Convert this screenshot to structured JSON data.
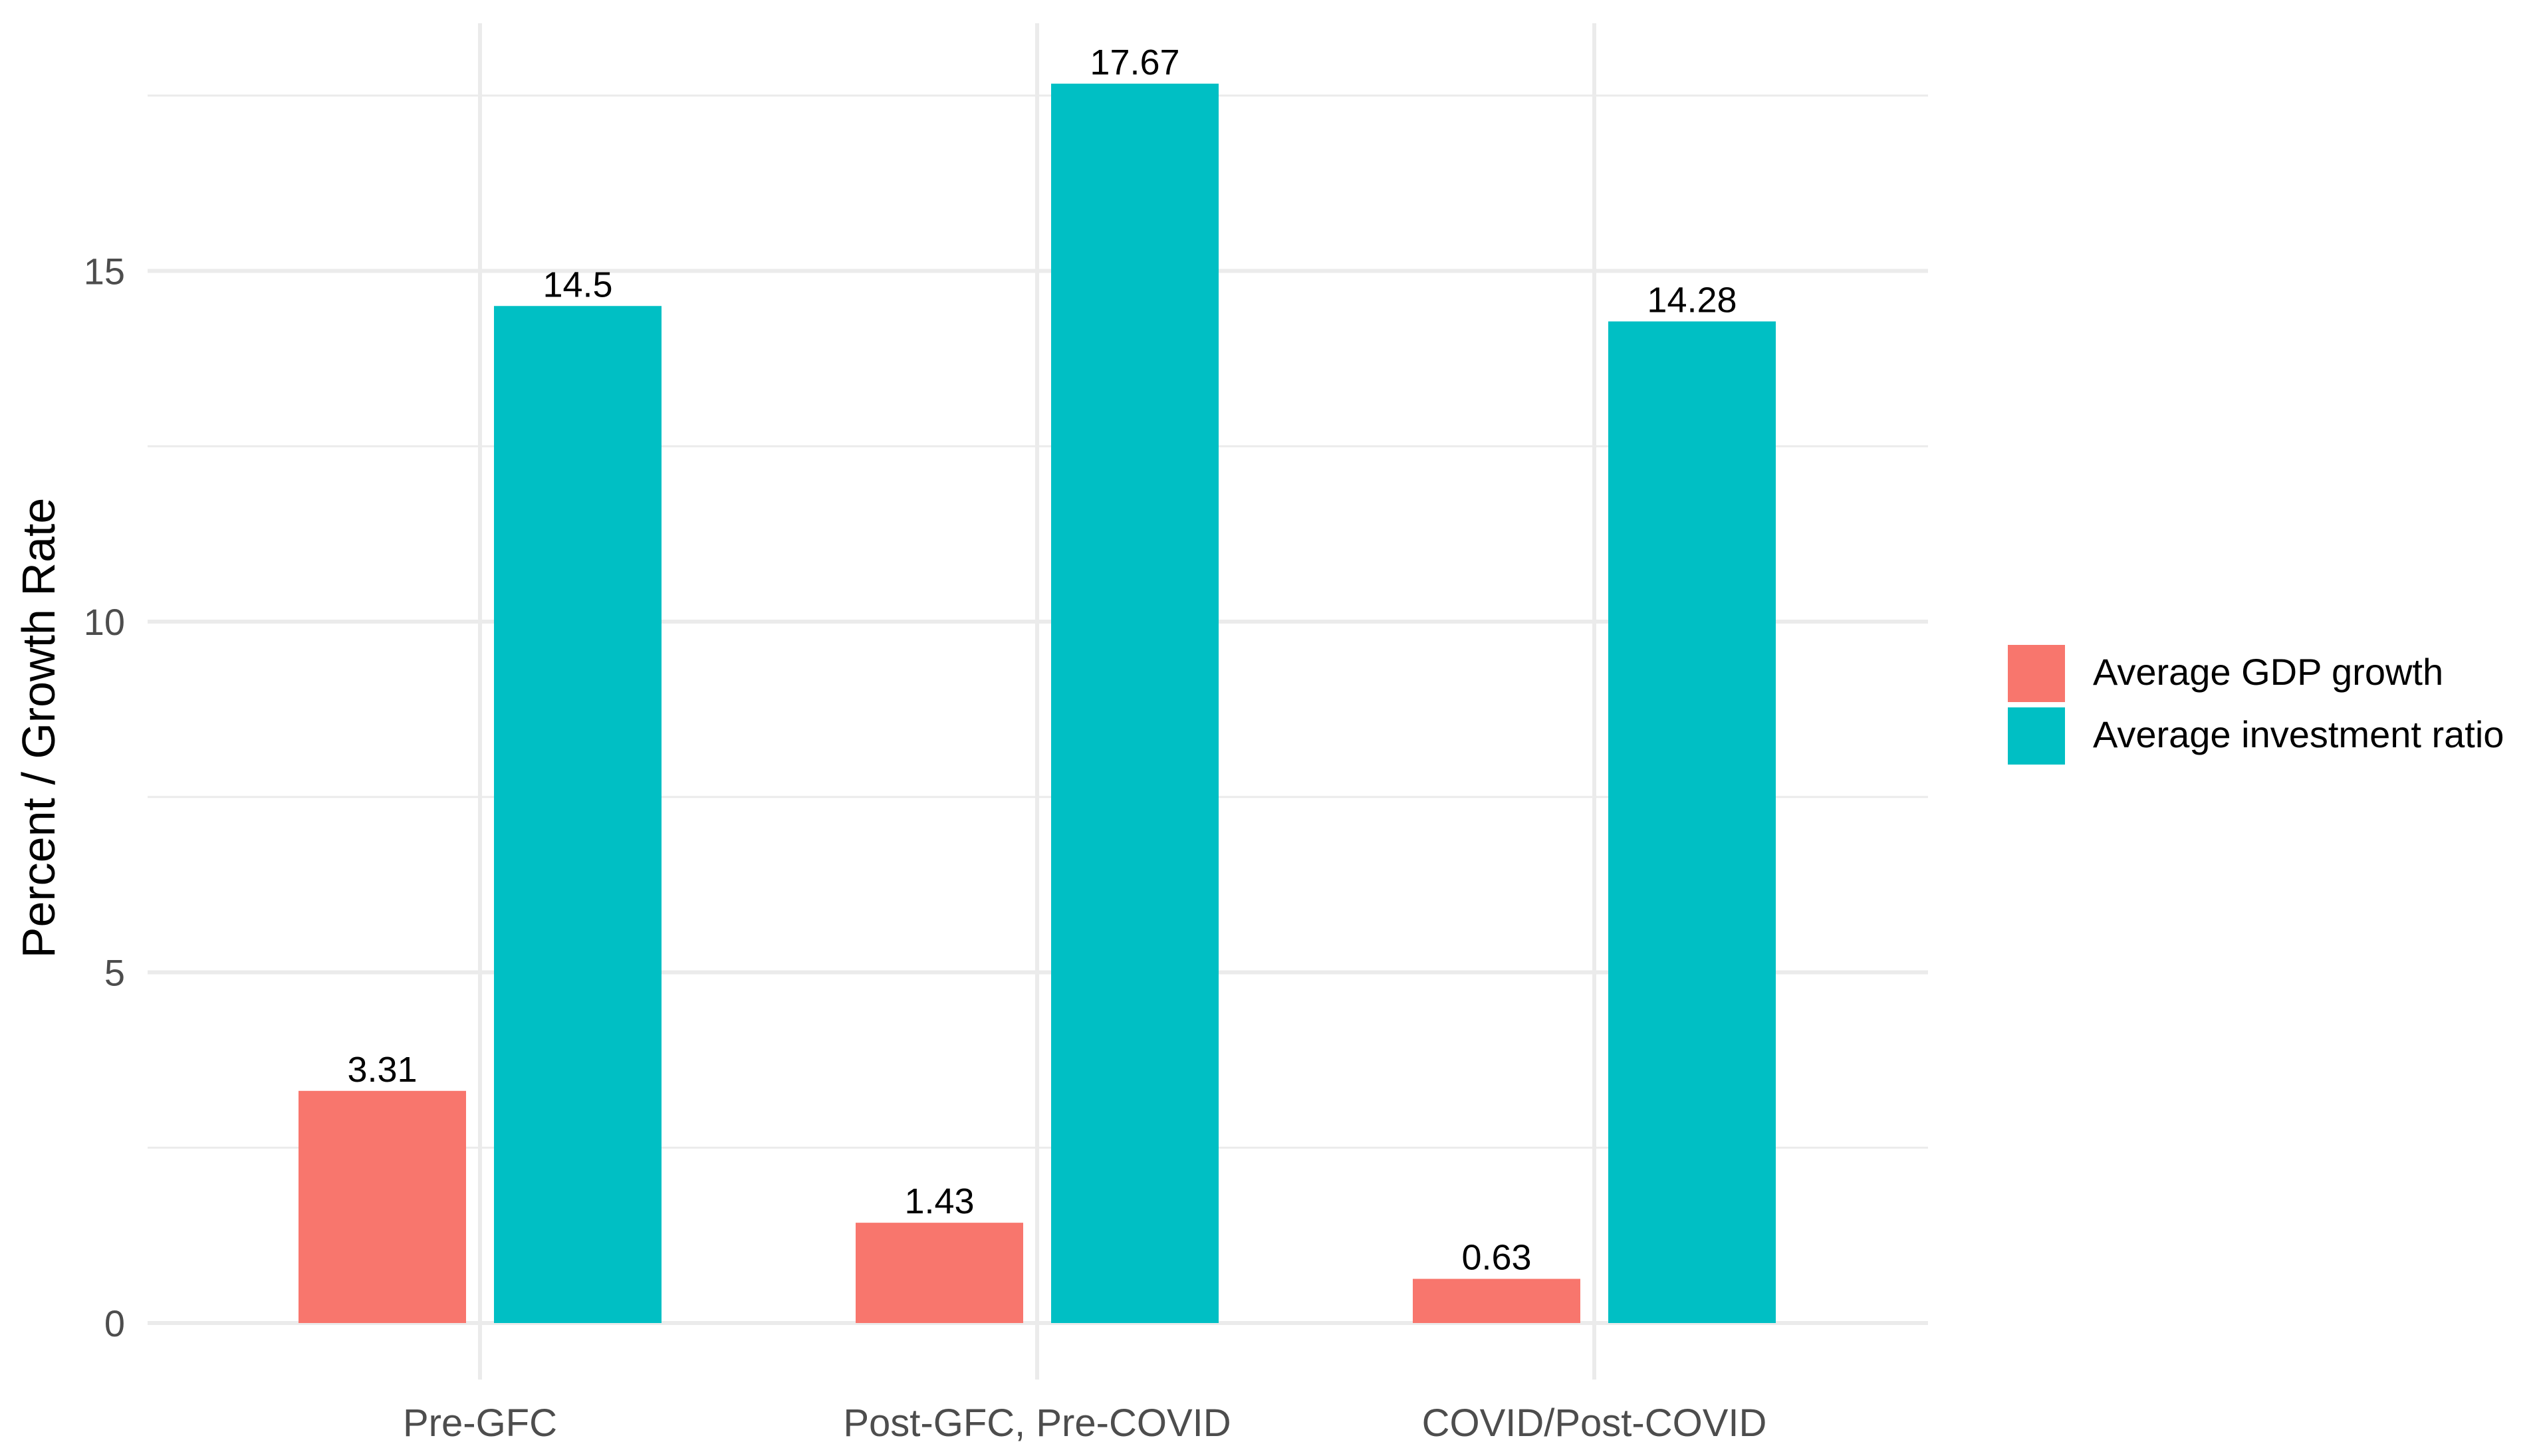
{
  "chart_data": {
    "type": "bar",
    "title": "",
    "xlabel": "",
    "ylabel": "Percent / Growth Rate",
    "categories": [
      "Pre-GFC",
      "Post-GFC, Pre-COVID",
      "COVID/Post-COVID"
    ],
    "series": [
      {
        "name": "Average GDP growth",
        "color": "#F8766D",
        "values": [
          3.31,
          1.43,
          0.63
        ]
      },
      {
        "name": "Average investment ratio",
        "color": "#00BFC4",
        "values": [
          14.5,
          17.67,
          14.28
        ]
      }
    ],
    "ylim": [
      0,
      17.67
    ],
    "yticks": [
      0,
      5,
      10,
      15
    ],
    "grid": true,
    "legend_position": "right"
  }
}
